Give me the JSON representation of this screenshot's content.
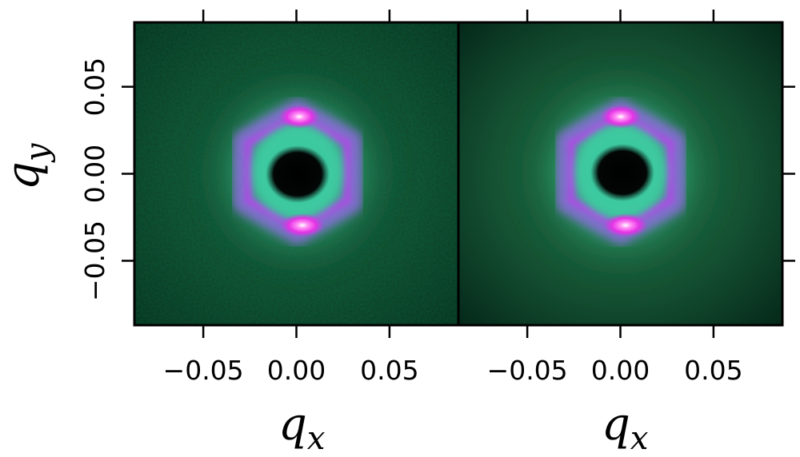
{
  "chart_data": [
    {
      "type": "heatmap",
      "panel": "left",
      "xlabel": "q",
      "xlabel_sub": "x",
      "ylabel": "q",
      "ylabel_sub": "y",
      "xlim": [
        -0.087,
        0.087
      ],
      "ylim": [
        -0.087,
        0.087
      ],
      "xticks": [
        -0.05,
        0.0,
        0.05
      ],
      "xtick_labels": [
        "−0.05",
        "0.00",
        "0.05"
      ],
      "yticks": [
        -0.05,
        0.0,
        0.05
      ],
      "ytick_labels": [
        "−0.05",
        "0.00",
        "0.05"
      ],
      "colormap": [
        "#000000",
        "#0a2e1c",
        "#1d7a4e",
        "#3fd19d",
        "#7a7ad8",
        "#c73fdf",
        "#ff5cf0",
        "#ffffff"
      ],
      "features": {
        "central_hole_radius": 0.014,
        "ring_radius": 0.027,
        "ring_symmetry": "hexagonal",
        "bright_peaks": [
          [
            0.0,
            0.031
          ],
          [
            0.0,
            -0.031
          ]
        ],
        "texture": "noisy"
      },
      "grid": false
    },
    {
      "type": "heatmap",
      "panel": "right",
      "xlabel": "q",
      "xlabel_sub": "x",
      "xlim": [
        -0.087,
        0.087
      ],
      "ylim": [
        -0.087,
        0.087
      ],
      "xticks": [
        -0.05,
        0.0,
        0.05
      ],
      "xtick_labels": [
        "−0.05",
        "0.00",
        "0.05"
      ],
      "features": {
        "central_hole_radius": 0.014,
        "ring_radius": 0.027,
        "ring_symmetry": "hexagonal",
        "bright_peaks": [
          [
            0.0,
            0.031
          ],
          [
            0.0,
            -0.031
          ]
        ],
        "texture": "smooth"
      },
      "grid": false
    }
  ]
}
